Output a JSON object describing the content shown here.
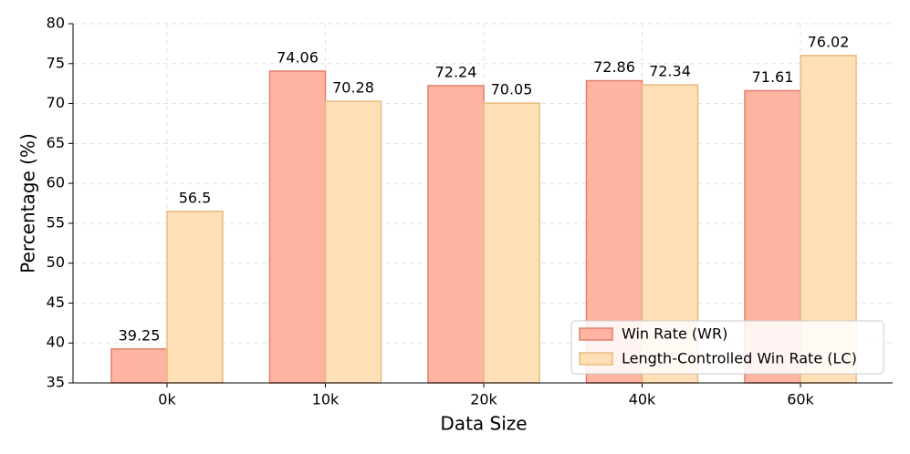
{
  "chart_data": {
    "type": "bar",
    "x_label": "Data Size",
    "y_label": "Percentage (%)",
    "categories": [
      "0k",
      "10k",
      "20k",
      "40k",
      "60k"
    ],
    "series": [
      {
        "name": "Win Rate (WR)",
        "color": "#ffb3a1",
        "edgecolor": "#e0806e",
        "values": [
          39.25,
          74.06,
          72.24,
          72.86,
          71.61
        ]
      },
      {
        "name": "Length-Controlled Win Rate (LC)",
        "color": "#ffdfb5",
        "edgecolor": "#e8bb82",
        "values": [
          56.5,
          70.28,
          70.05,
          72.34,
          76.02
        ]
      }
    ],
    "ylim": [
      35,
      80
    ],
    "yticks": [
      35,
      40,
      45,
      50,
      55,
      60,
      65,
      70,
      75,
      80
    ],
    "grid": true,
    "legend": "lower right"
  }
}
